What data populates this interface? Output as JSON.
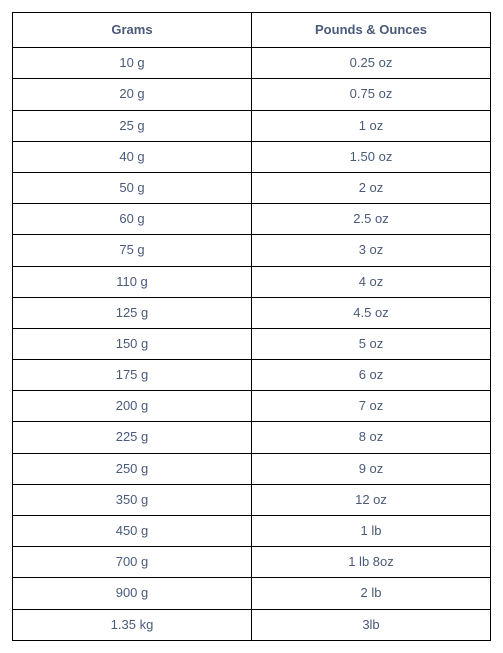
{
  "table": {
    "columns": [
      "Grams",
      "Pounds & Ounces"
    ],
    "rows": [
      [
        "10 g",
        "0.25 oz"
      ],
      [
        "20 g",
        "0.75 oz"
      ],
      [
        "25 g",
        "1 oz"
      ],
      [
        "40 g",
        "1.50 oz"
      ],
      [
        "50 g",
        "2 oz"
      ],
      [
        "60 g",
        "2.5 oz"
      ],
      [
        "75 g",
        "3 oz"
      ],
      [
        "110 g",
        "4 oz"
      ],
      [
        "125 g",
        "4.5 oz"
      ],
      [
        "150 g",
        "5 oz"
      ],
      [
        "175 g",
        "6 oz"
      ],
      [
        "200 g",
        "7 oz"
      ],
      [
        "225 g",
        "8 oz"
      ],
      [
        "250 g",
        "9 oz"
      ],
      [
        "350 g",
        "12 oz"
      ],
      [
        "450 g",
        "1 lb"
      ],
      [
        "700 g",
        "1 lb 8oz"
      ],
      [
        "900 g",
        "2 lb"
      ],
      [
        "1.35 kg",
        "3lb"
      ]
    ],
    "styling": {
      "border_color": "#000000",
      "text_color": "#4a5a7a",
      "background_color": "#ffffff",
      "font_family": "Arial, Helvetica, sans-serif",
      "header_fontsize": 13,
      "cell_fontsize": 13,
      "header_fontweight": "bold",
      "cell_fontweight": "normal",
      "column_widths_pct": [
        50,
        50
      ],
      "text_align": "center"
    }
  }
}
